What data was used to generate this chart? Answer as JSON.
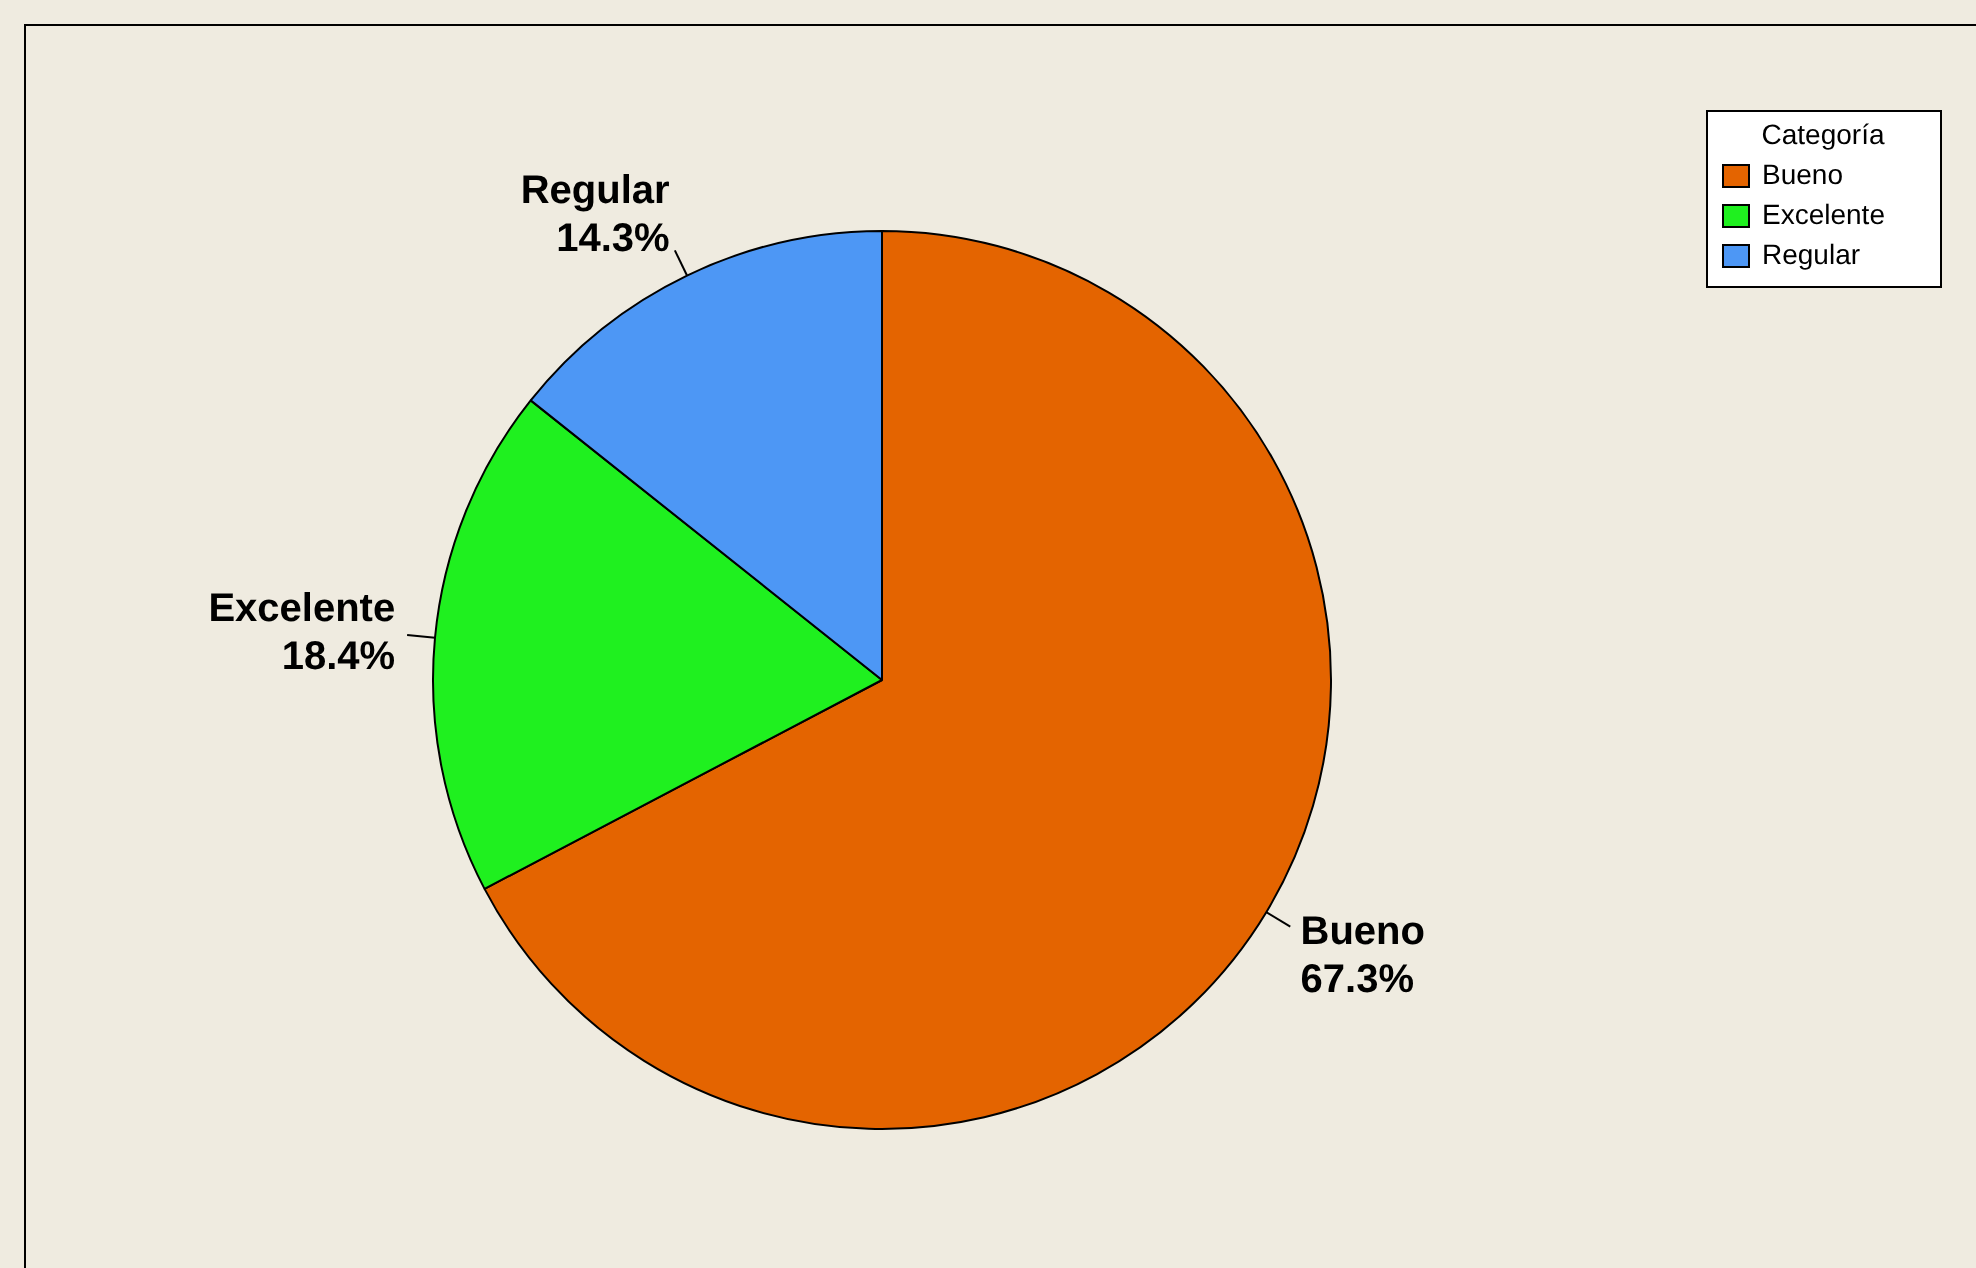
{
  "chart_data": {
    "type": "pie",
    "legend_title": "Categoría",
    "categories": [
      "Bueno",
      "Excelente",
      "Regular"
    ],
    "values": [
      67.3,
      18.4,
      14.3
    ],
    "colors": [
      "#e46400",
      "#1ff01f",
      "#4d97f5"
    ],
    "value_labels": [
      "67.3%",
      "18.4%",
      "14.3%"
    ],
    "legend": "top right"
  }
}
